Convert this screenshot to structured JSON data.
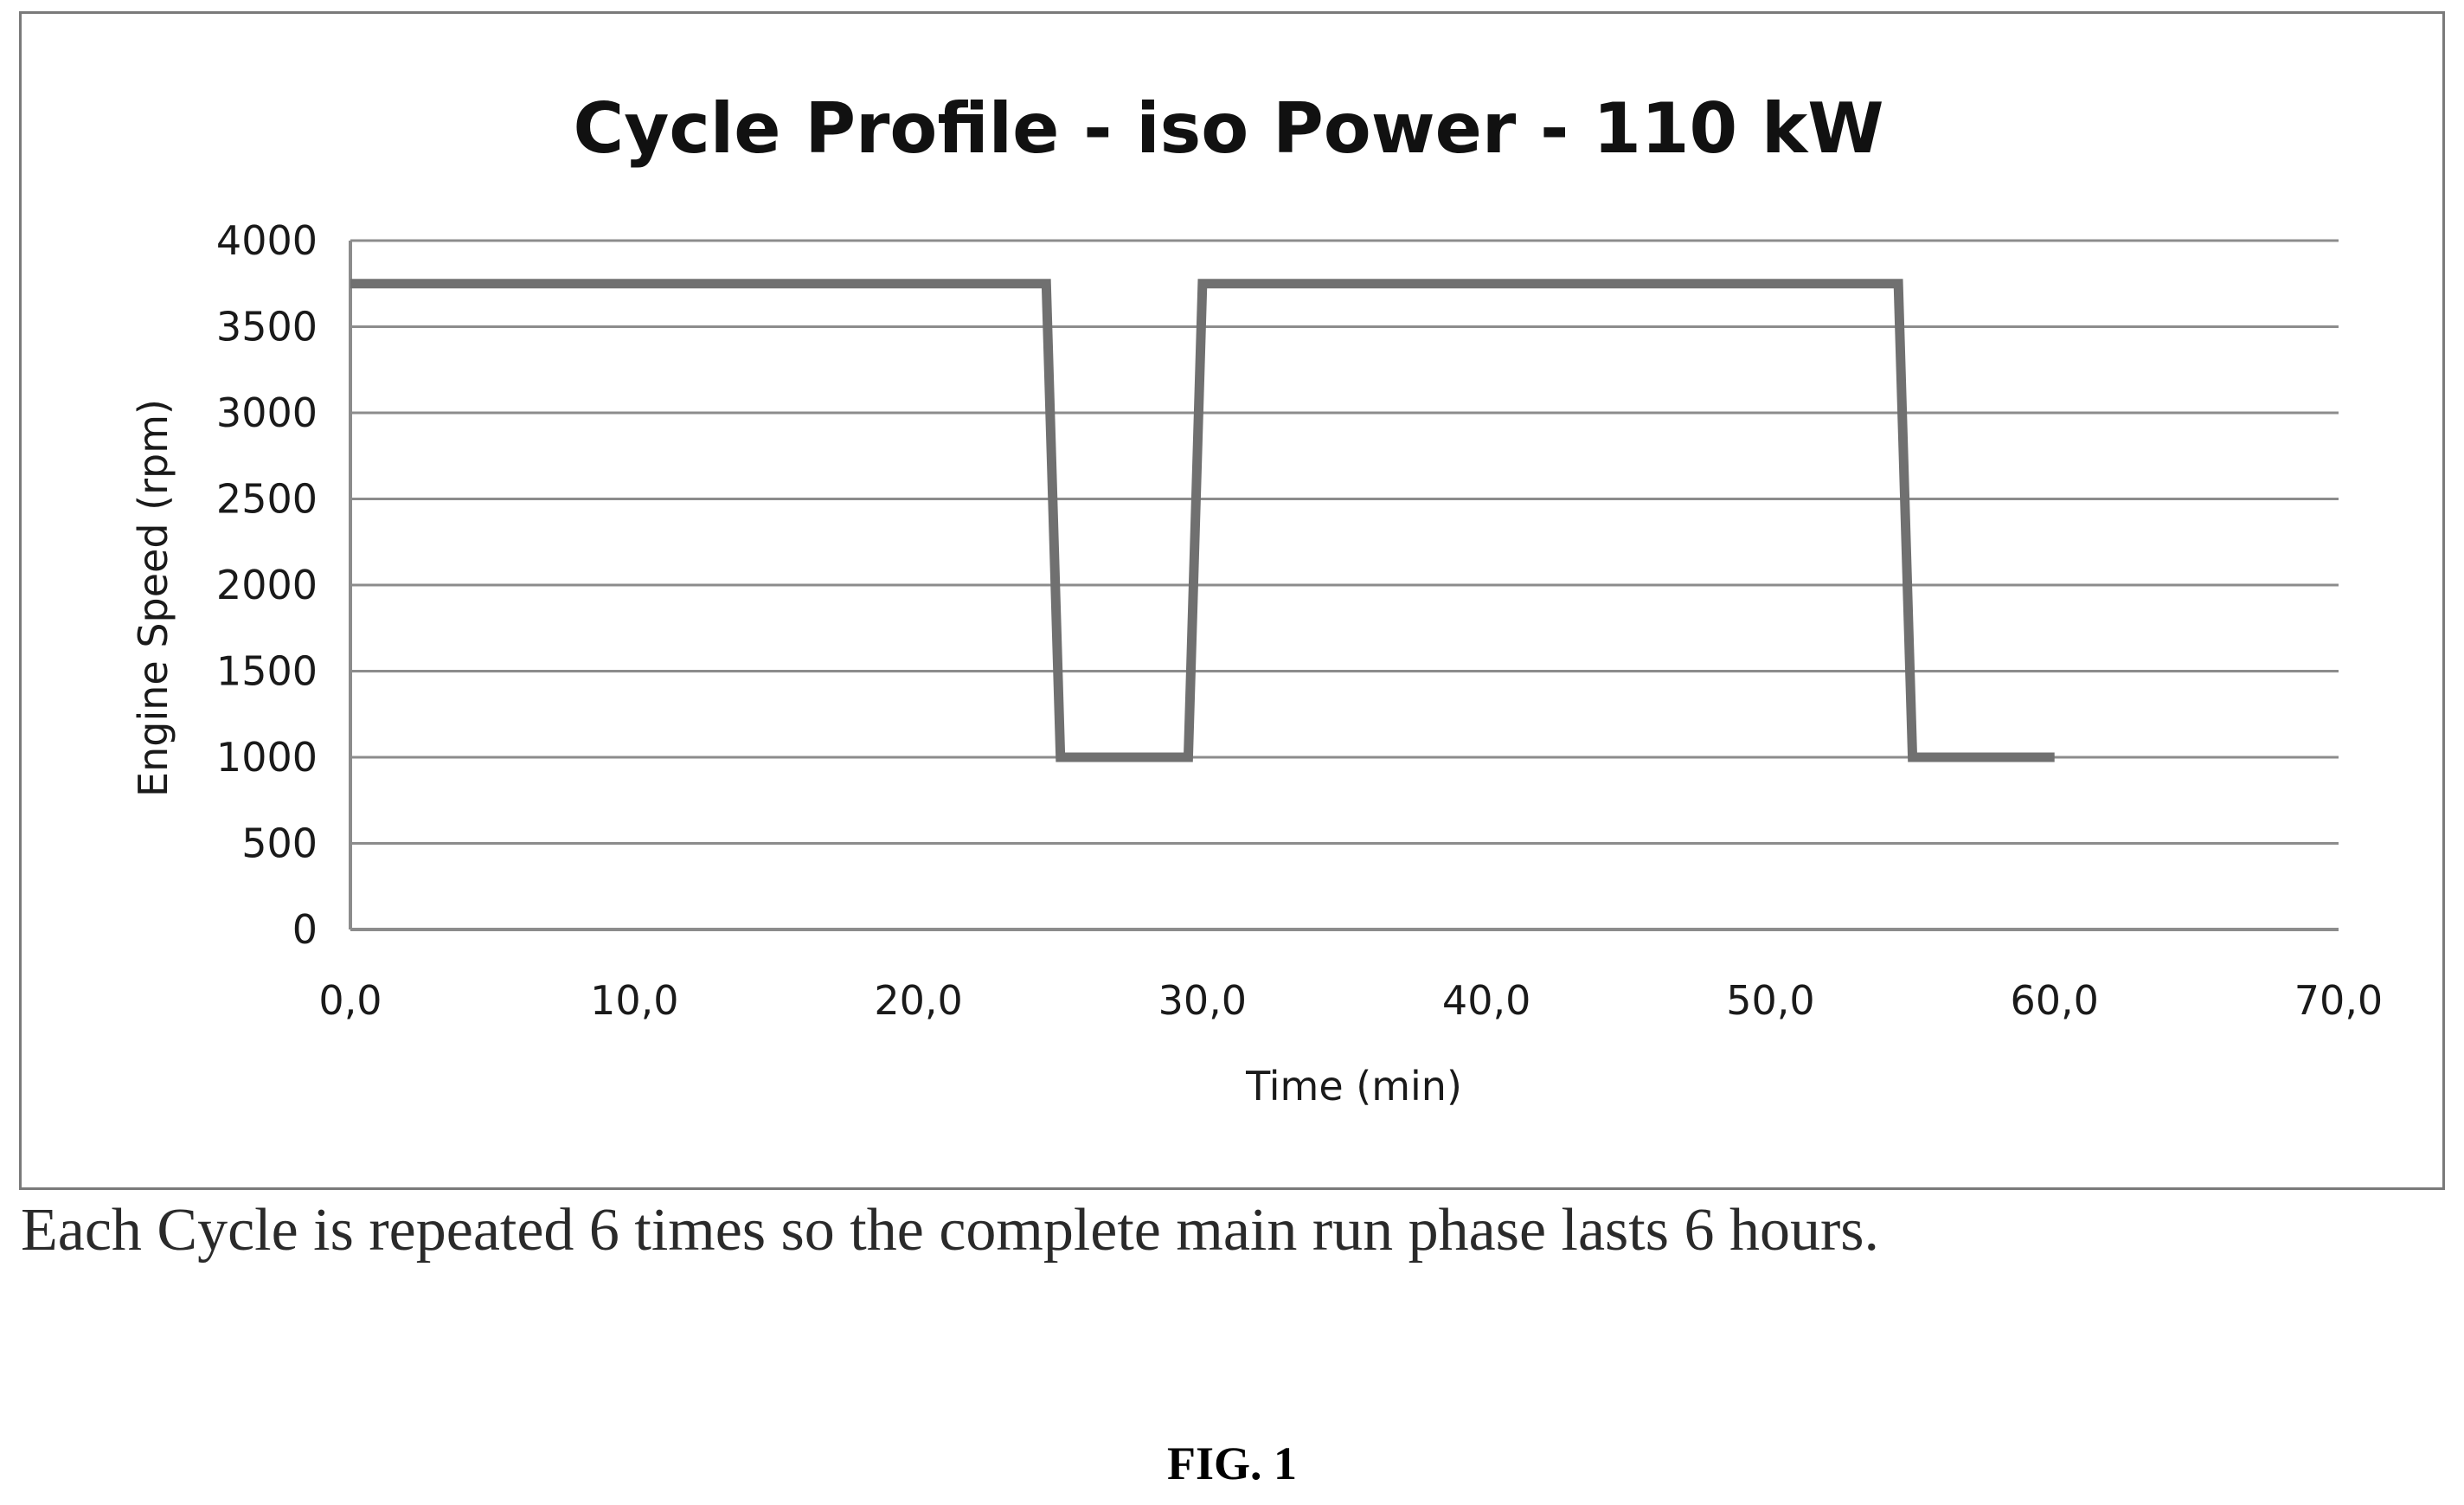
{
  "chart_data": {
    "type": "line",
    "title": "Cycle Profile - iso Power - 110 kW",
    "xlabel": "Time (min)",
    "ylabel": "Engine Speed (rpm)",
    "xlim": [
      0,
      70
    ],
    "ylim": [
      0,
      4000
    ],
    "x_ticks": [
      0,
      10,
      20,
      30,
      40,
      50,
      60,
      70
    ],
    "x_tick_labels": [
      "0,0",
      "10,0",
      "20,0",
      "30,0",
      "40,0",
      "50,0",
      "60,0",
      "70,0"
    ],
    "y_ticks": [
      0,
      500,
      1000,
      1500,
      2000,
      2500,
      3000,
      3500,
      4000
    ],
    "y_tick_labels": [
      "0",
      "500",
      "1000",
      "1500",
      "2000",
      "2500",
      "3000",
      "3500",
      "4000"
    ],
    "grid": "horizontal",
    "legend": "none",
    "series": [
      {
        "x": [
          0,
          24.5,
          25,
          29.5,
          30,
          54.5,
          55,
          60
        ],
        "y": [
          3750,
          3750,
          1000,
          1000,
          3750,
          3750,
          1000,
          1000
        ]
      }
    ],
    "line_color": "#707070",
    "grid_color": "#8c8c8c"
  },
  "caption": "Each Cycle is repeated 6 times so the complete main run phase lasts 6 hours.",
  "figure_label": "FIG. 1"
}
